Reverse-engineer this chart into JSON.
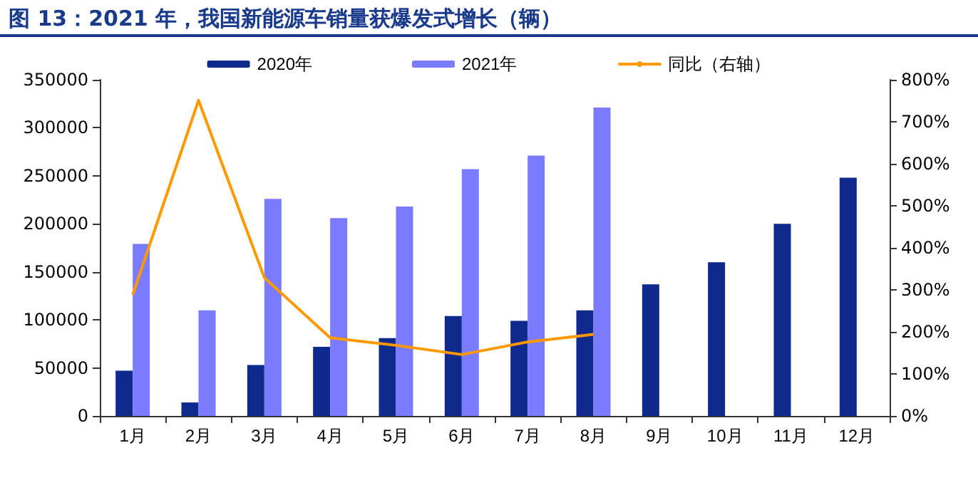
{
  "chart_data": {
    "type": "bar",
    "title": "图 13：2021 年，我国新能源车销量获爆发式增长（辆）",
    "categories": [
      "1月",
      "2月",
      "3月",
      "4月",
      "5月",
      "6月",
      "7月",
      "8月",
      "9月",
      "10月",
      "11月",
      "12月"
    ],
    "series": [
      {
        "name": "2020年",
        "color": "#0f2a8c",
        "values": [
          47000,
          14000,
          53000,
          72000,
          81000,
          104000,
          99000,
          110000,
          137000,
          160000,
          200000,
          248000
        ]
      },
      {
        "name": "2021年",
        "color": "#7b7bff",
        "values": [
          179000,
          110000,
          226000,
          206000,
          218000,
          257000,
          271000,
          321000,
          null,
          null,
          null,
          null
        ]
      },
      {
        "name": "同比（右轴）",
        "type": "line",
        "axis": "y2",
        "color": "#ff9900",
        "values": [
          288,
          751,
          329,
          186,
          168,
          146,
          176,
          194,
          null,
          null,
          null,
          null
        ]
      }
    ],
    "ylim": [
      0,
      350000
    ],
    "yticks": [
      0,
      50000,
      100000,
      150000,
      200000,
      250000,
      300000,
      350000
    ],
    "y2lim": [
      0,
      800
    ],
    "y2ticks": [
      {
        "value": 0,
        "label": "0%"
      },
      {
        "value": 100,
        "label": "100%"
      },
      {
        "value": 200,
        "label": "200%"
      },
      {
        "value": 300,
        "label": "300%"
      },
      {
        "value": 400,
        "label": "400%"
      },
      {
        "value": 500,
        "label": "500%"
      },
      {
        "value": 600,
        "label": "600%"
      },
      {
        "value": 700,
        "label": "700%"
      },
      {
        "value": 800,
        "label": "800%"
      }
    ],
    "grid": false,
    "legend": "top",
    "marker": "none"
  }
}
